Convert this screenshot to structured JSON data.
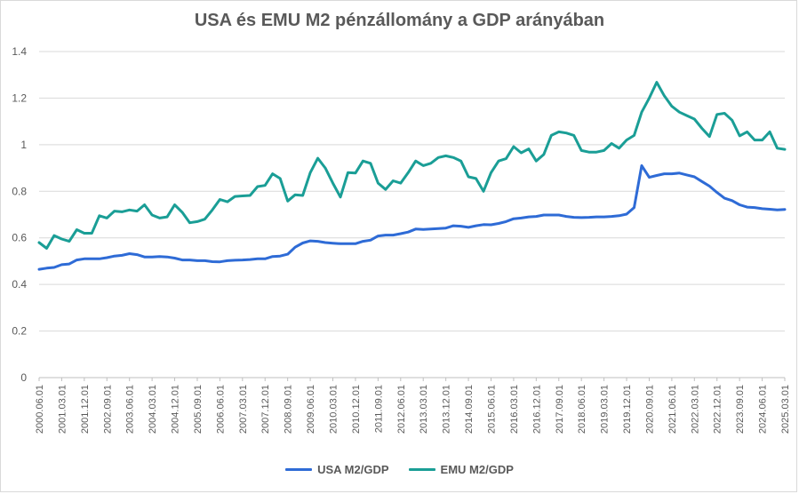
{
  "chart_data": {
    "type": "line",
    "title": "USA és EMU M2 pénzállomány a GDP arányában",
    "ylim": [
      0,
      1.4
    ],
    "yticks": [
      "0",
      "0.2",
      "0.4",
      "0.6",
      "0.8",
      "1",
      "1.2",
      "1.4"
    ],
    "ytick_values": [
      0,
      0.2,
      0.4,
      0.6,
      0.8,
      1,
      1.2,
      1.4
    ],
    "x_start": "2000.06.01",
    "x_end": "2025.03.01",
    "xticks": [
      "2000.06.01",
      "2001.03.01",
      "2001.12.01",
      "2002.09.01",
      "2003.06.01",
      "2004.03.01",
      "2004.12.01",
      "2005.09.01",
      "2006.06.01",
      "2007.03.01",
      "2007.12.01",
      "2008.09.01",
      "2009.06.01",
      "2010.03.01",
      "2010.12.01",
      "2011.09.01",
      "2012.06.01",
      "2013.03.01",
      "2013.12.01",
      "2014.09.01",
      "2015.06.01",
      "2016.03.01",
      "2016.12.01",
      "2017.09.01",
      "2018.06.01",
      "2019.03.01",
      "2019.12.01",
      "2020.09.01",
      "2021.06.01",
      "2022.03.01",
      "2022.12.01",
      "2023.09.01",
      "2024.06.01",
      "2025.03.01"
    ],
    "grid": true,
    "legend_position": "bottom",
    "series": [
      {
        "name": "USA M2/GDP",
        "color": "#2e6bd6",
        "values": [
          0.465,
          0.47,
          0.473,
          0.485,
          0.488,
          0.505,
          0.51,
          0.51,
          0.51,
          0.515,
          0.522,
          0.525,
          0.532,
          0.528,
          0.518,
          0.518,
          0.52,
          0.518,
          0.513,
          0.505,
          0.505,
          0.502,
          0.502,
          0.498,
          0.497,
          0.502,
          0.504,
          0.505,
          0.507,
          0.51,
          0.51,
          0.52,
          0.522,
          0.53,
          0.56,
          0.578,
          0.587,
          0.585,
          0.58,
          0.577,
          0.575,
          0.575,
          0.575,
          0.585,
          0.59,
          0.608,
          0.612,
          0.612,
          0.618,
          0.625,
          0.638,
          0.636,
          0.638,
          0.64,
          0.642,
          0.652,
          0.65,
          0.645,
          0.652,
          0.657,
          0.656,
          0.662,
          0.67,
          0.682,
          0.685,
          0.69,
          0.692,
          0.698,
          0.698,
          0.698,
          0.692,
          0.688,
          0.687,
          0.688,
          0.69,
          0.69,
          0.692,
          0.695,
          0.702,
          0.73,
          0.91,
          0.86,
          0.868,
          0.875,
          0.875,
          0.878,
          0.87,
          0.862,
          0.842,
          0.822,
          0.795,
          0.77,
          0.76,
          0.742,
          0.732,
          0.73,
          0.725,
          0.723,
          0.72,
          0.722
        ]
      },
      {
        "name": "EMU M2/GDP",
        "color": "#1a9e96",
        "values": [
          0.58,
          0.555,
          0.61,
          0.595,
          0.585,
          0.635,
          0.62,
          0.62,
          0.695,
          0.685,
          0.715,
          0.712,
          0.72,
          0.715,
          0.742,
          0.698,
          0.685,
          0.69,
          0.742,
          0.71,
          0.665,
          0.67,
          0.68,
          0.72,
          0.765,
          0.755,
          0.778,
          0.78,
          0.782,
          0.82,
          0.825,
          0.875,
          0.855,
          0.758,
          0.785,
          0.782,
          0.88,
          0.942,
          0.9,
          0.835,
          0.775,
          0.88,
          0.878,
          0.93,
          0.92,
          0.835,
          0.808,
          0.845,
          0.835,
          0.88,
          0.93,
          0.91,
          0.92,
          0.945,
          0.952,
          0.945,
          0.93,
          0.862,
          0.855,
          0.8,
          0.88,
          0.93,
          0.94,
          0.992,
          0.965,
          0.982,
          0.93,
          0.958,
          1.04,
          1.055,
          1.05,
          1.04,
          0.975,
          0.968,
          0.968,
          0.975,
          1.005,
          0.985,
          1.02,
          1.04,
          1.14,
          1.2,
          1.268,
          1.21,
          1.165,
          1.14,
          1.125,
          1.11,
          1.07,
          1.035,
          1.13,
          1.135,
          1.105,
          1.038,
          1.055,
          1.02,
          1.02,
          1.055,
          0.985,
          0.98
        ]
      }
    ]
  }
}
